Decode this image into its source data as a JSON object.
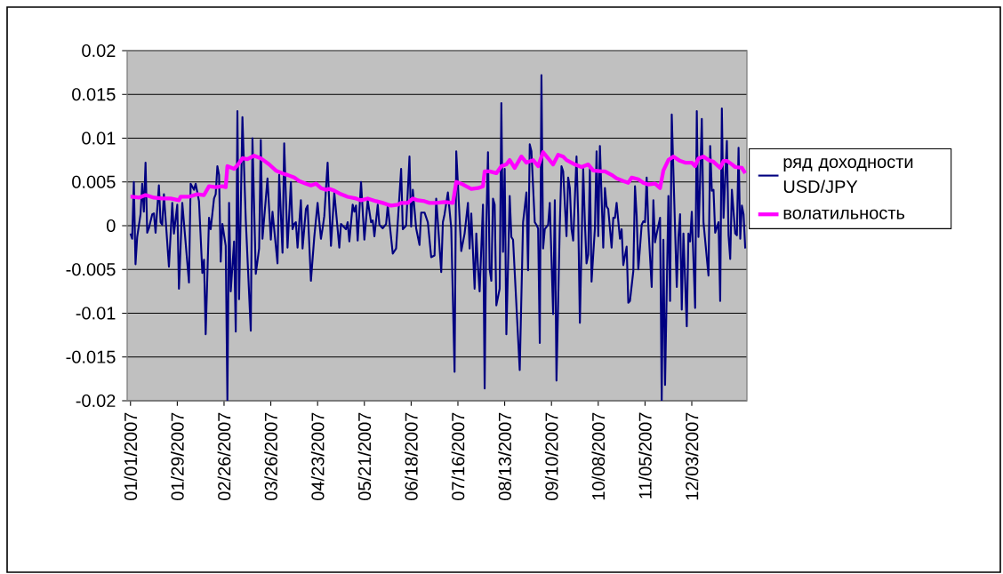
{
  "chart_data": {
    "type": "line",
    "xlim": [
      "2006-12-30",
      "2008-01-05"
    ],
    "ylim": [
      -0.02,
      0.02
    ],
    "yticks": [
      -0.02,
      -0.015,
      -0.01,
      -0.005,
      0,
      0.005,
      0.01,
      0.015,
      0.02
    ],
    "xticks": [
      {
        "value": "2007-01-01",
        "label": "01/01/2007"
      },
      {
        "value": "2007-01-29",
        "label": "01/29/2007"
      },
      {
        "value": "2007-02-26",
        "label": "02/26/2007"
      },
      {
        "value": "2007-03-26",
        "label": "03/26/2007"
      },
      {
        "value": "2007-04-23",
        "label": "04/23/2007"
      },
      {
        "value": "2007-05-21",
        "label": "05/21/2007"
      },
      {
        "value": "2007-06-18",
        "label": "06/18/2007"
      },
      {
        "value": "2007-07-16",
        "label": "07/16/2007"
      },
      {
        "value": "2007-08-13",
        "label": "08/13/2007"
      },
      {
        "value": "2007-09-10",
        "label": "09/10/2007"
      },
      {
        "value": "2007-10-08",
        "label": "10/08/2007"
      },
      {
        "value": "2007-11-05",
        "label": "11/05/2007"
      },
      {
        "value": "2007-12-03",
        "label": "12/03/2007"
      }
    ],
    "grid": "y",
    "legend": "right",
    "series": [
      {
        "name": "ряд доходности USD/JPY",
        "color": "#000080",
        "x": [
          "2007-01-01",
          "2007-01-02",
          "2007-01-03",
          "2007-01-04",
          "2007-01-05",
          "2007-01-07",
          "2007-01-08",
          "2007-01-09",
          "2007-01-10",
          "2007-01-11",
          "2007-01-12",
          "2007-01-14",
          "2007-01-15",
          "2007-01-16",
          "2007-01-18",
          "2007-01-19",
          "2007-01-20",
          "2007-01-21",
          "2007-01-24",
          "2007-01-26",
          "2007-01-27",
          "2007-01-29",
          "2007-01-30",
          "2007-02-01",
          "2007-02-05",
          "2007-02-06",
          "2007-02-08",
          "2007-02-09",
          "2007-02-11",
          "2007-02-13",
          "2007-02-14",
          "2007-02-15",
          "2007-02-17",
          "2007-02-18",
          "2007-02-20",
          "2007-02-21",
          "2007-02-22",
          "2007-02-23",
          "2007-02-24",
          "2007-02-25",
          "2007-02-27",
          "2007-02-28",
          "2007-03-01",
          "2007-03-02",
          "2007-03-04",
          "2007-03-05",
          "2007-03-06",
          "2007-03-07",
          "2007-03-09",
          "2007-03-11",
          "2007-03-14",
          "2007-03-15",
          "2007-03-17",
          "2007-03-19",
          "2007-03-20",
          "2007-03-21",
          "2007-03-24",
          "2007-03-26",
          "2007-03-27",
          "2007-03-30",
          "2007-03-31",
          "2007-04-02",
          "2007-04-03",
          "2007-04-05",
          "2007-04-07",
          "2007-04-08",
          "2007-04-09",
          "2007-04-10",
          "2007-04-11",
          "2007-04-13",
          "2007-04-14",
          "2007-04-16",
          "2007-04-17",
          "2007-04-19",
          "2007-04-21",
          "2007-04-23",
          "2007-04-25",
          "2007-04-26",
          "2007-04-27",
          "2007-04-29",
          "2007-05-01",
          "2007-05-03",
          "2007-05-06",
          "2007-05-07",
          "2007-05-10",
          "2007-05-11",
          "2007-05-12",
          "2007-05-14",
          "2007-05-15",
          "2007-05-16",
          "2007-05-17",
          "2007-05-19",
          "2007-05-21",
          "2007-05-23",
          "2007-05-25",
          "2007-05-26",
          "2007-05-27",
          "2007-05-29",
          "2007-05-30",
          "2007-06-01",
          "2007-06-03",
          "2007-06-04",
          "2007-06-07",
          "2007-06-09",
          "2007-06-12",
          "2007-06-13",
          "2007-06-15",
          "2007-06-17",
          "2007-06-18",
          "2007-06-19",
          "2007-06-21",
          "2007-06-23",
          "2007-06-24",
          "2007-06-26",
          "2007-06-28",
          "2007-06-30",
          "2007-07-02",
          "2007-07-03",
          "2007-07-04",
          "2007-07-06",
          "2007-07-07",
          "2007-07-08",
          "2007-07-10",
          "2007-07-12",
          "2007-07-14",
          "2007-07-15",
          "2007-07-18",
          "2007-07-20",
          "2007-07-22",
          "2007-07-23",
          "2007-07-24",
          "2007-07-26",
          "2007-07-27",
          "2007-07-28",
          "2007-07-29",
          "2007-07-31",
          "2007-08-01",
          "2007-08-02",
          "2007-08-03",
          "2007-08-04",
          "2007-08-05",
          "2007-08-06",
          "2007-08-07",
          "2007-08-08",
          "2007-08-10",
          "2007-08-11",
          "2007-08-12",
          "2007-08-13",
          "2007-08-14",
          "2007-08-16",
          "2007-08-17",
          "2007-08-18",
          "2007-08-22",
          "2007-08-24",
          "2007-08-26",
          "2007-08-27",
          "2007-08-28",
          "2007-08-29",
          "2007-08-31",
          "2007-09-01",
          "2007-09-02",
          "2007-09-03",
          "2007-09-04",
          "2007-09-05",
          "2007-09-06",
          "2007-09-08",
          "2007-09-09",
          "2007-09-11",
          "2007-09-12",
          "2007-09-13",
          "2007-09-15",
          "2007-09-16",
          "2007-09-17",
          "2007-09-19",
          "2007-09-20",
          "2007-09-21",
          "2007-09-22",
          "2007-09-23",
          "2007-09-25",
          "2007-09-26",
          "2007-09-27",
          "2007-09-29",
          "2007-09-30",
          "2007-10-01",
          "2007-10-02",
          "2007-10-03",
          "2007-10-04",
          "2007-10-06",
          "2007-10-07",
          "2007-10-08",
          "2007-10-09",
          "2007-10-11",
          "2007-10-12",
          "2007-10-13",
          "2007-10-14",
          "2007-10-16",
          "2007-10-17",
          "2007-10-18",
          "2007-10-19",
          "2007-10-21",
          "2007-10-22",
          "2007-10-23",
          "2007-10-25",
          "2007-10-26",
          "2007-10-27",
          "2007-10-29",
          "2007-10-30",
          "2007-10-31",
          "2007-11-01",
          "2007-11-03",
          "2007-11-04",
          "2007-11-05",
          "2007-11-06",
          "2007-11-07",
          "2007-11-09",
          "2007-11-10",
          "2007-11-11",
          "2007-11-12",
          "2007-11-14",
          "2007-11-15",
          "2007-11-16",
          "2007-11-17",
          "2007-11-19",
          "2007-11-20",
          "2007-11-21",
          "2007-11-24",
          "2007-11-25",
          "2007-11-26",
          "2007-11-27",
          "2007-11-28",
          "2007-11-30",
          "2007-12-01",
          "2007-12-02",
          "2007-12-03",
          "2007-12-05",
          "2007-12-06",
          "2007-12-07",
          "2007-12-09",
          "2007-12-10",
          "2007-12-12",
          "2007-12-13",
          "2007-12-14",
          "2007-12-15",
          "2007-12-16",
          "2007-12-17",
          "2007-12-19",
          "2007-12-20",
          "2007-12-21",
          "2007-12-22",
          "2007-12-24",
          "2007-12-25",
          "2007-12-26",
          "2007-12-27",
          "2007-12-29",
          "2007-12-30",
          "2007-12-31",
          "2008-01-01",
          "2008-01-02",
          "2008-01-03",
          "2008-01-04"
        ],
        "values": [
          -0.0009,
          -0.0015,
          0.005,
          -0.0044,
          -0.0013,
          0.0013,
          0.0048,
          0.0016,
          0.0072,
          -0.0008,
          -0.0003,
          0.0013,
          0.0014,
          -0.0008,
          0.0046,
          0.0004,
          0.0001,
          0.0036,
          -0.0047,
          0.0026,
          -0.0009,
          0.0024,
          -0.0072,
          0.0026,
          -0.0065,
          0.0048,
          0.0041,
          0.0048,
          0.0028,
          -0.0054,
          -0.0039,
          -0.0124,
          0.0009,
          -0.0004,
          0.0031,
          0.0036,
          0.0068,
          0.0058,
          -0.0041,
          0.0002,
          -0.0023,
          -0.02,
          0.0026,
          -0.0075,
          -0.0018,
          -0.0121,
          0.0131,
          -0.0084,
          0.0124,
          0.0007,
          -0.012,
          0.01,
          -0.0055,
          -0.0026,
          0.0098,
          -0.0015,
          0.0054,
          -0.0016,
          0.0016,
          -0.0043,
          0.0058,
          -0.0031,
          0.0094,
          -0.0025,
          0.005,
          -0.0004,
          0.0002,
          0.0004,
          -0.0025,
          0.0029,
          -0.0026,
          0.0019,
          0.0023,
          -0.0063,
          -0.0013,
          0.0026,
          -0.0015,
          -0.0003,
          0.0011,
          0.0072,
          -0.0023,
          0.0038,
          -0.0025,
          0.0002,
          -0.0004,
          0.0004,
          -0.0018,
          0.0024,
          0.0016,
          0.0023,
          -0.0017,
          0.005,
          -0.0016,
          0.0029,
          0.0004,
          0.0006,
          -0.0012,
          0.0024,
          0.0001,
          -0.0003,
          0.0002,
          0.0023,
          -0.0032,
          -0.0026,
          0.0065,
          -0.0004,
          0.0,
          0.0079,
          -0.0001,
          0.0041,
          -0.0003,
          -0.0022,
          0.0015,
          0.0015,
          0.0004,
          -0.0036,
          -0.0034,
          0.0031,
          0.0004,
          -0.0053,
          0.0004,
          0.0013,
          0.0038,
          -0.0003,
          -0.0167,
          0.0085,
          -0.0029,
          -0.0009,
          0.0026,
          -0.0026,
          0.0014,
          -0.0072,
          -0.0009,
          -0.0047,
          -0.0075,
          0.0024,
          -0.0186,
          0.0001,
          0.0084,
          -0.005,
          -0.0063,
          0.0031,
          0.0024,
          -0.0091,
          -0.0072,
          0.014,
          -0.003,
          0.0065,
          -0.0124,
          0.0034,
          -0.0013,
          -0.0016,
          -0.0165,
          0.0004,
          0.0038,
          -0.0051,
          0.0093,
          0.0085,
          0.0004,
          0.0001,
          -0.0003,
          -0.0134,
          0.0172,
          -0.0026,
          -0.0004,
          0.0001,
          0.0026,
          -0.0101,
          0.0029,
          -0.0177,
          0.0001,
          0.0068,
          0.0062,
          -0.0012,
          0.0055,
          0.0043,
          -0.0004,
          -0.0017,
          0.0079,
          0.0011,
          -0.0111,
          0.0065,
          0.0004,
          -0.0043,
          -0.0033,
          0.0065,
          -0.0064,
          -0.0003,
          0.0085,
          -0.0012,
          0.0091,
          -0.0025,
          0.0043,
          0.0022,
          0.0019,
          -0.0025,
          0.0009,
          0.0009,
          0.0026,
          -0.0015,
          -0.0004,
          -0.0045,
          -0.0024,
          -0.0088,
          -0.0086,
          -0.0052,
          0.0045,
          0.0011,
          -0.005,
          0.0001,
          0.0005,
          0.0004,
          0.0055,
          -0.0001,
          -0.007,
          0.0029,
          -0.0019,
          -0.0009,
          0.0009,
          -0.02,
          -0.0016,
          -0.0182,
          0.0034,
          -0.0086,
          0.0127,
          -0.007,
          -0.0013,
          0.0013,
          -0.0096,
          -0.0009,
          -0.0115,
          -0.0009,
          -0.0018,
          0.0016,
          -0.0094,
          0.0131,
          -0.0013,
          0.0122,
          0.0004,
          -0.0037,
          -0.0057,
          0.0091,
          0.004,
          0.0041,
          -0.0008,
          0.0004,
          -0.0086,
          0.0134,
          0.0009,
          0.0097,
          -0.0011,
          -0.0038,
          0.0041,
          -0.0009,
          -0.0011,
          0.0089,
          -0.0015,
          0.0023,
          0.0013,
          -0.0026
        ]
      },
      {
        "name": "волатильность",
        "color": "#ff00ff",
        "x": [
          "2007-01-01",
          "2007-01-02",
          "2007-01-06",
          "2007-01-10",
          "2007-01-15",
          "2007-01-20",
          "2007-01-25",
          "2007-01-30",
          "2007-01-31",
          "2007-02-05",
          "2007-02-10",
          "2007-02-14",
          "2007-02-17",
          "2007-02-21",
          "2007-02-25",
          "2007-02-27",
          "2007-02-28",
          "2007-03-04",
          "2007-03-06",
          "2007-03-09",
          "2007-03-12",
          "2007-03-16",
          "2007-03-20",
          "2007-03-25",
          "2007-03-29",
          "2007-04-03",
          "2007-04-05",
          "2007-04-09",
          "2007-04-12",
          "2007-04-16",
          "2007-04-19",
          "2007-04-22",
          "2007-04-25",
          "2007-04-28",
          "2007-04-30",
          "2007-05-03",
          "2007-05-07",
          "2007-05-11",
          "2007-05-16",
          "2007-05-19",
          "2007-05-23",
          "2007-05-28",
          "2007-06-01",
          "2007-06-04",
          "2007-06-06",
          "2007-06-10",
          "2007-06-12",
          "2007-06-16",
          "2007-06-19",
          "2007-06-22",
          "2007-06-26",
          "2007-06-29",
          "2007-07-03",
          "2007-07-08",
          "2007-07-13",
          "2007-07-15",
          "2007-07-18",
          "2007-07-21",
          "2007-07-24",
          "2007-07-28",
          "2007-07-31",
          "2007-08-01",
          "2007-08-04",
          "2007-08-08",
          "2007-08-11",
          "2007-08-14",
          "2007-08-16",
          "2007-08-19",
          "2007-08-23",
          "2007-08-26",
          "2007-08-30",
          "2007-09-02",
          "2007-09-05",
          "2007-09-08",
          "2007-09-11",
          "2007-09-14",
          "2007-09-17",
          "2007-09-19",
          "2007-09-24",
          "2007-09-28",
          "2007-10-02",
          "2007-10-05",
          "2007-10-10",
          "2007-10-12",
          "2007-10-16",
          "2007-10-19",
          "2007-10-23",
          "2007-10-26",
          "2007-10-28",
          "2007-11-01",
          "2007-11-04",
          "2007-11-07",
          "2007-11-11",
          "2007-11-14",
          "2007-11-16",
          "2007-11-19",
          "2007-11-22",
          "2007-11-26",
          "2007-11-29",
          "2007-12-03",
          "2007-12-05",
          "2007-12-07",
          "2007-12-10",
          "2007-12-13",
          "2007-12-16",
          "2007-12-20",
          "2007-12-22",
          "2007-12-24",
          "2007-12-27",
          "2007-12-29",
          "2008-01-02",
          "2008-01-04"
        ],
        "values": [
          0.0033,
          0.0033,
          0.0032,
          0.0035,
          0.0032,
          0.0031,
          0.0031,
          0.0029,
          0.0033,
          0.0033,
          0.0036,
          0.0035,
          0.0045,
          0.0044,
          0.0045,
          0.0044,
          0.0068,
          0.0065,
          0.0069,
          0.0077,
          0.0076,
          0.008,
          0.0077,
          0.007,
          0.0063,
          0.0059,
          0.0058,
          0.0055,
          0.0051,
          0.0048,
          0.0046,
          0.0048,
          0.0043,
          0.0041,
          0.0042,
          0.004,
          0.0036,
          0.0033,
          0.0031,
          0.0029,
          0.0031,
          0.0028,
          0.0026,
          0.0024,
          0.0023,
          0.0024,
          0.0026,
          0.0026,
          0.0031,
          0.0029,
          0.0028,
          0.0026,
          0.0026,
          0.0027,
          0.0026,
          0.005,
          0.0048,
          0.0045,
          0.0042,
          0.0043,
          0.0045,
          0.0062,
          0.0062,
          0.006,
          0.0068,
          0.007,
          0.0075,
          0.0066,
          0.0079,
          0.0072,
          0.0075,
          0.0068,
          0.0084,
          0.0077,
          0.007,
          0.0081,
          0.0079,
          0.0075,
          0.007,
          0.0067,
          0.007,
          0.0063,
          0.0062,
          0.0062,
          0.0058,
          0.0054,
          0.0051,
          0.0049,
          0.0055,
          0.0053,
          0.0049,
          0.0047,
          0.0048,
          0.0043,
          0.0063,
          0.0075,
          0.0079,
          0.0074,
          0.0072,
          0.0072,
          0.0068,
          0.0077,
          0.0079,
          0.0075,
          0.0073,
          0.0066,
          0.0074,
          0.0074,
          0.007,
          0.0067,
          0.0066,
          0.006
        ]
      }
    ]
  }
}
